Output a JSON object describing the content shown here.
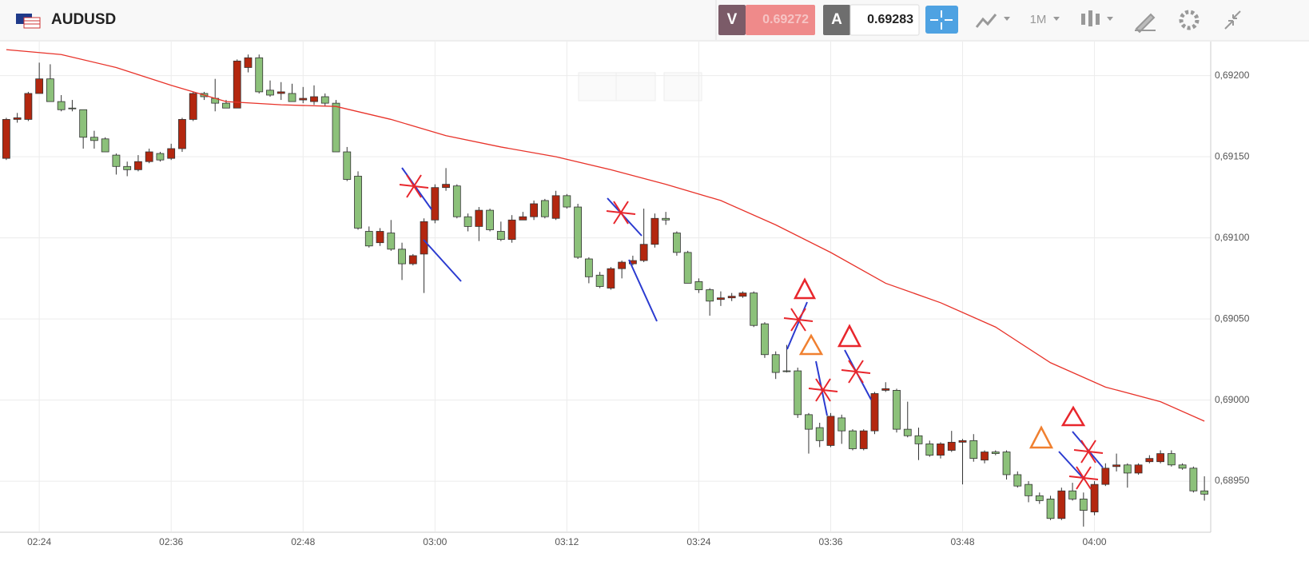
{
  "header": {
    "symbol": "AUDUSD",
    "sell_label": "V",
    "sell_price": "0.69272",
    "buy_label": "A",
    "buy_price": "0.69283",
    "timeframe": "1M"
  },
  "chart_data": {
    "type": "candlestick",
    "categories": [
      null,
      null,
      null,
      "02:24",
      null,
      null,
      null,
      null,
      null,
      null,
      null,
      null,
      null,
      null,
      null,
      "02:36",
      null,
      null,
      null,
      null,
      null,
      null,
      null,
      null,
      null,
      null,
      null,
      "02:48",
      null,
      null,
      null,
      null,
      null,
      null,
      null,
      null,
      null,
      null,
      null,
      "03:00",
      null,
      null,
      null,
      null,
      null,
      null,
      null,
      null,
      null,
      null,
      null,
      "03:12",
      null,
      null,
      null,
      null,
      null,
      null,
      null,
      null,
      null,
      null,
      null,
      "03:24",
      null,
      null,
      null,
      null,
      null,
      null,
      null,
      null,
      null,
      null,
      null,
      "03:36",
      null,
      null,
      null,
      null,
      null,
      null,
      null,
      null,
      null,
      null,
      null,
      "03:48",
      null,
      null,
      null,
      null,
      null,
      null,
      null,
      null,
      null,
      null,
      null,
      "04:00",
      null,
      null,
      null,
      null,
      null,
      null,
      null,
      null,
      null,
      null
    ],
    "open": [
      0.69149,
      0.69173,
      0.69173,
      0.69189,
      0.69198,
      0.69184,
      0.6918,
      0.69179,
      0.69162,
      0.69161,
      0.69151,
      0.69144,
      0.69142,
      0.69147,
      0.69152,
      0.69149,
      0.69155,
      0.69173,
      0.69189,
      0.69186,
      0.69183,
      0.6918,
      0.69205,
      0.69211,
      0.69191,
      0.69189,
      0.69189,
      0.69185,
      0.69184,
      0.69187,
      0.69183,
      0.69153,
      0.69138,
      0.69104,
      0.69097,
      0.69103,
      0.69093,
      0.69084,
      0.6909,
      0.69111,
      0.69131,
      0.69132,
      0.69113,
      0.69107,
      0.69117,
      0.69104,
      0.69099,
      0.69111,
      0.69113,
      0.69123,
      0.69112,
      0.69126,
      0.69119,
      0.69087,
      0.69077,
      0.69069,
      0.69081,
      0.69084,
      0.69086,
      0.69096,
      0.69112,
      0.69103,
      0.69091,
      0.69073,
      0.69068,
      0.69062,
      0.69063,
      0.69064,
      0.69066,
      0.69047,
      0.69028,
      0.69018,
      0.69018,
      0.68991,
      0.68983,
      0.68972,
      0.68989,
      0.68981,
      0.6897,
      0.68981,
      0.69006,
      0.69006,
      0.68982,
      0.68978,
      0.68973,
      0.68966,
      0.68969,
      0.68974,
      0.68975,
      0.68963,
      0.68968,
      0.68968,
      0.68954,
      0.68948,
      0.68941,
      0.68939,
      0.68927,
      0.68944,
      0.68939,
      0.68931,
      0.68948,
      0.68959,
      0.6896,
      0.68955,
      0.68962,
      0.68962,
      0.68967,
      0.6896,
      0.68958,
      0.68944
    ],
    "high": [
      0.69174,
      0.69177,
      0.6919,
      0.69208,
      0.69207,
      0.69188,
      0.69185,
      0.69179,
      0.69166,
      0.69162,
      0.69152,
      0.69147,
      0.69151,
      0.69155,
      0.69153,
      0.69158,
      0.69174,
      0.6919,
      0.6919,
      0.69198,
      0.69185,
      0.6921,
      0.69213,
      0.69213,
      0.69197,
      0.69196,
      0.69195,
      0.69193,
      0.69194,
      0.69189,
      0.69185,
      0.69156,
      0.69141,
      0.69107,
      0.69106,
      0.69111,
      0.69097,
      0.6909,
      0.69112,
      0.69133,
      0.69143,
      0.69133,
      0.69115,
      0.69119,
      0.69118,
      0.6911,
      0.69114,
      0.69116,
      0.69123,
      0.69124,
      0.69129,
      0.69127,
      0.69121,
      0.69088,
      0.69079,
      0.69082,
      0.69086,
      0.69089,
      0.69118,
      0.69115,
      0.69116,
      0.69104,
      0.69092,
      0.69075,
      0.69069,
      0.69067,
      0.69066,
      0.69067,
      0.69067,
      0.69048,
      0.6903,
      0.69034,
      0.6902,
      0.68992,
      0.68986,
      0.68992,
      0.68991,
      0.68982,
      0.68982,
      0.69005,
      0.69011,
      0.69007,
      0.68999,
      0.68983,
      0.68975,
      0.68974,
      0.68981,
      0.68976,
      0.68979,
      0.68969,
      0.68969,
      0.68969,
      0.68956,
      0.6895,
      0.68943,
      0.68941,
      0.68946,
      0.68949,
      0.68943,
      0.6895,
      0.68961,
      0.68967,
      0.68961,
      0.68961,
      0.68966,
      0.68969,
      0.68969,
      0.68961,
      0.68959,
      0.68953
    ],
    "low": [
      0.69148,
      0.69171,
      0.69172,
      0.69189,
      0.69184,
      0.69178,
      0.69178,
      0.69155,
      0.69155,
      0.69153,
      0.69139,
      0.69138,
      0.69141,
      0.69146,
      0.69147,
      0.69148,
      0.69153,
      0.69172,
      0.69185,
      0.69178,
      0.6918,
      0.6918,
      0.69202,
      0.69189,
      0.69187,
      0.69185,
      0.69184,
      0.69183,
      0.69182,
      0.69181,
      0.69153,
      0.69135,
      0.69105,
      0.69094,
      0.69095,
      0.69092,
      0.69074,
      0.69083,
      0.69066,
      0.69109,
      0.69129,
      0.69112,
      0.69104,
      0.69098,
      0.69104,
      0.69098,
      0.69097,
      0.69111,
      0.69111,
      0.69112,
      0.69111,
      0.69118,
      0.69087,
      0.69072,
      0.69069,
      0.69068,
      0.69075,
      0.69083,
      0.69085,
      0.69094,
      0.69108,
      0.69089,
      0.69072,
      0.69066,
      0.69052,
      0.69058,
      0.69061,
      0.69063,
      0.69045,
      0.69026,
      0.69013,
      0.69017,
      0.68989,
      0.68967,
      0.68971,
      0.68971,
      0.68973,
      0.68969,
      0.68969,
      0.68979,
      0.69005,
      0.6898,
      0.68977,
      0.68963,
      0.68965,
      0.68964,
      0.68968,
      0.68948,
      0.68962,
      0.68961,
      0.68966,
      0.68951,
      0.68946,
      0.68937,
      0.68936,
      0.68926,
      0.68926,
      0.68938,
      0.68922,
      0.68929,
      0.68947,
      0.68956,
      0.68946,
      0.68954,
      0.68961,
      0.68961,
      0.68959,
      0.68957,
      0.68943,
      0.68938
    ],
    "close": [
      0.69173,
      0.69174,
      0.69189,
      0.69198,
      0.69184,
      0.69179,
      0.6918,
      0.69162,
      0.6916,
      0.69153,
      0.69144,
      0.69142,
      0.69147,
      0.69153,
      0.69148,
      0.69155,
      0.69173,
      0.69189,
      0.69187,
      0.69183,
      0.6918,
      0.69209,
      0.69211,
      0.6919,
      0.69188,
      0.6919,
      0.69184,
      0.69186,
      0.69187,
      0.69183,
      0.69153,
      0.69136,
      0.69106,
      0.69095,
      0.69104,
      0.69093,
      0.69084,
      0.69089,
      0.6911,
      0.69131,
      0.69133,
      0.69113,
      0.69107,
      0.69117,
      0.69105,
      0.69099,
      0.69111,
      0.69113,
      0.69121,
      0.69113,
      0.69126,
      0.69119,
      0.69088,
      0.69076,
      0.6907,
      0.69081,
      0.69085,
      0.69086,
      0.69096,
      0.69112,
      0.69111,
      0.69091,
      0.69072,
      0.69068,
      0.69061,
      0.69063,
      0.69064,
      0.69066,
      0.69046,
      0.69028,
      0.69017,
      0.69018,
      0.68991,
      0.68982,
      0.68975,
      0.6899,
      0.68981,
      0.6897,
      0.68981,
      0.69004,
      0.69007,
      0.68982,
      0.68978,
      0.68973,
      0.68966,
      0.68973,
      0.68974,
      0.68975,
      0.68964,
      0.68968,
      0.68967,
      0.68954,
      0.68947,
      0.68941,
      0.68938,
      0.68927,
      0.68944,
      0.68939,
      0.68932,
      0.68948,
      0.68958,
      0.6896,
      0.68955,
      0.6896,
      0.68964,
      0.68967,
      0.6896,
      0.68958,
      0.68944,
      0.68942
    ],
    "up_color": "#b3270f",
    "down_color": "#8cc17a",
    "moving_average": {
      "color": "#e8332a",
      "x": [
        0,
        5,
        10,
        15,
        20,
        25,
        30,
        35,
        40,
        45,
        50,
        55,
        60,
        65,
        70,
        75,
        80,
        85,
        90,
        95,
        100,
        105,
        109
      ],
      "values": [
        0.69216,
        0.69213,
        0.69205,
        0.69194,
        0.69184,
        0.69182,
        0.69181,
        0.69173,
        0.69163,
        0.69156,
        0.6915,
        0.69142,
        0.69133,
        0.69123,
        0.69108,
        0.69091,
        0.69072,
        0.6906,
        0.69045,
        0.69023,
        0.69008,
        0.68999,
        0.68987
      ]
    },
    "ylim": [
      0.68919,
      0.69221
    ],
    "yticks": [
      {
        "value": 0.6895,
        "label": "0,68950"
      },
      {
        "value": 0.69,
        "label": "0,69000"
      },
      {
        "value": 0.6905,
        "label": "0,69050"
      },
      {
        "value": 0.691,
        "label": "0,69100"
      },
      {
        "value": 0.6915,
        "label": "0,69150"
      },
      {
        "value": 0.692,
        "label": "0,69200"
      }
    ],
    "grid": true
  }
}
